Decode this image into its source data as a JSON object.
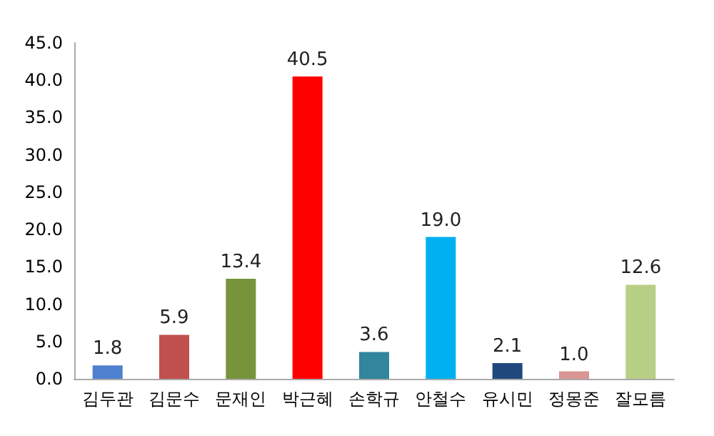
{
  "chart_data": {
    "type": "bar",
    "categories": [
      "김두관",
      "김문수",
      "문재인",
      "박근혜",
      "손학규",
      "안철수",
      "유시민",
      "정몽준",
      "잘모름"
    ],
    "values": [
      1.8,
      5.9,
      13.4,
      40.5,
      3.6,
      19.0,
      2.1,
      1.0,
      12.6
    ],
    "colors": [
      "#4f7fcf",
      "#c0504d",
      "#77933c",
      "#ff0000",
      "#31859c",
      "#00b0f0",
      "#1f497d",
      "#d99694",
      "#b7cf84"
    ],
    "value_labels": [
      "1.8",
      "5.9",
      "13.4",
      "40.5",
      "3.6",
      "19.0",
      "2.1",
      "1.0",
      "12.6"
    ],
    "ylim": [
      0,
      45
    ],
    "yticks": [
      {
        "value": 0,
        "label": "0.0"
      },
      {
        "value": 5,
        "label": "5.0"
      },
      {
        "value": 10,
        "label": "10.0"
      },
      {
        "value": 15,
        "label": "15.0"
      },
      {
        "value": 20,
        "label": "20.0"
      },
      {
        "value": 25,
        "label": "25.0"
      },
      {
        "value": 30,
        "label": "30.0"
      },
      {
        "value": 35,
        "label": "35.0"
      },
      {
        "value": 40,
        "label": "40.0"
      },
      {
        "value": 45,
        "label": "45.0"
      }
    ],
    "grid": false
  }
}
